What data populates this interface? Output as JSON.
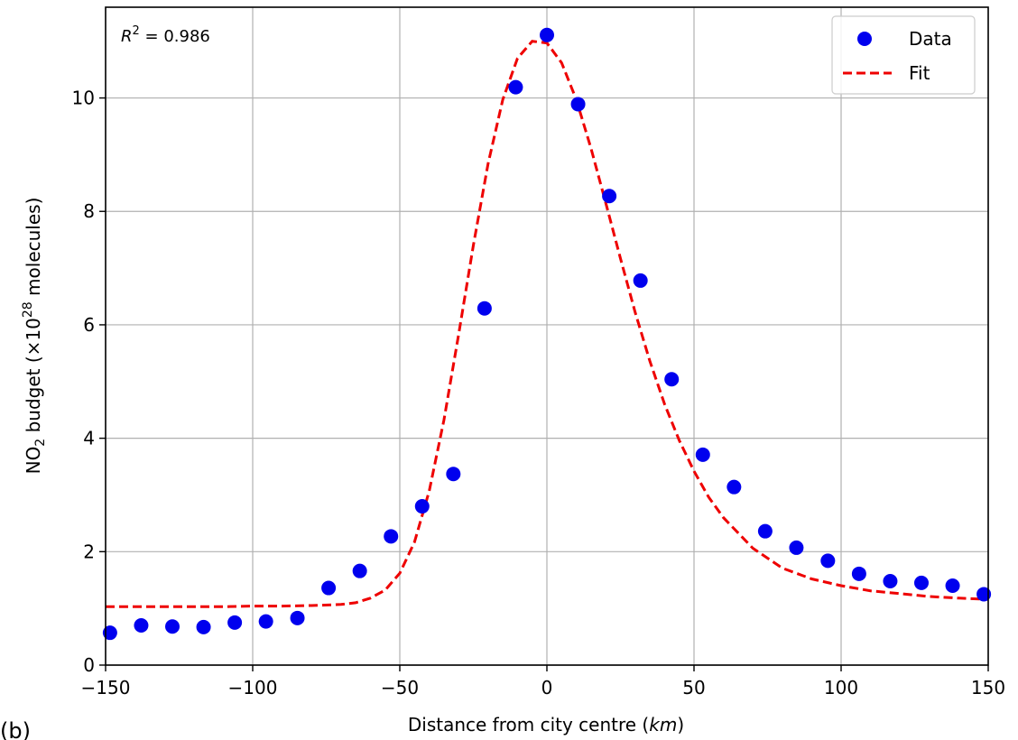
{
  "chart_data": {
    "type": "scatter",
    "panel_label": "(b)",
    "xlabel_prefix": "Distance from city centre (",
    "xlabel_unit": "km",
    "xlabel_suffix": ")",
    "ylabel_prefix": "NO",
    "ylabel_sub": "2",
    "ylabel_mid": " budget (×10",
    "ylabel_sup": "28",
    "ylabel_suffix": " molecules)",
    "xlim": [
      -150,
      150
    ],
    "ylim": [
      0,
      11.6
    ],
    "xticks": [
      -150,
      -100,
      -50,
      0,
      50,
      100,
      150
    ],
    "xtick_labels": [
      "−150",
      "−100",
      "−50",
      "0",
      "50",
      "100",
      "150"
    ],
    "yticks": [
      0,
      2,
      4,
      6,
      8,
      10
    ],
    "ytick_labels": [
      "0",
      "2",
      "4",
      "6",
      "8",
      "10"
    ],
    "grid": true,
    "legend_position": "top-right",
    "annotation": {
      "symbol": "R",
      "sup": "2",
      "text": " = 0.986"
    },
    "colors": {
      "data": "#0000ee",
      "fit": "#ee0000",
      "grid": "#b0b0b0"
    },
    "series": [
      {
        "name": "Data",
        "style": "markers",
        "x": [
          -148.5,
          -137.9,
          -127.3,
          -116.7,
          -106.1,
          -95.5,
          -84.8,
          -74.2,
          -63.6,
          -53.0,
          -42.4,
          -31.8,
          -21.2,
          -10.6,
          0.0,
          10.6,
          21.2,
          31.8,
          42.4,
          53.0,
          63.6,
          74.2,
          84.8,
          95.5,
          106.1,
          116.7,
          127.3,
          137.9,
          148.5
        ],
        "y": [
          0.57,
          0.7,
          0.68,
          0.67,
          0.75,
          0.77,
          0.83,
          1.36,
          1.66,
          2.27,
          2.8,
          3.37,
          6.29,
          10.19,
          11.11,
          9.89,
          8.27,
          6.78,
          5.04,
          3.71,
          3.14,
          2.36,
          2.07,
          1.84,
          1.61,
          1.48,
          1.45,
          1.4,
          1.25
        ]
      },
      {
        "name": "Fit",
        "style": "dashed-line",
        "x": [
          -150,
          -140,
          -130,
          -120,
          -110,
          -100,
          -90,
          -80,
          -70,
          -65,
          -60,
          -55,
          -50,
          -45,
          -40,
          -35,
          -30,
          -25,
          -20,
          -15,
          -10,
          -5,
          0,
          5,
          10,
          15,
          20,
          25,
          30,
          35,
          40,
          45,
          50,
          55,
          60,
          70,
          80,
          90,
          100,
          110,
          120,
          130,
          140,
          150
        ],
        "y": [
          1.03,
          1.03,
          1.03,
          1.03,
          1.03,
          1.04,
          1.04,
          1.05,
          1.07,
          1.1,
          1.18,
          1.32,
          1.62,
          2.17,
          3.07,
          4.32,
          5.83,
          7.4,
          8.84,
          9.97,
          10.7,
          11.0,
          10.97,
          10.62,
          9.97,
          9.11,
          8.15,
          7.17,
          6.22,
          5.36,
          4.6,
          3.96,
          3.42,
          2.96,
          2.6,
          2.06,
          1.71,
          1.52,
          1.4,
          1.31,
          1.26,
          1.21,
          1.18,
          1.16
        ]
      }
    ]
  }
}
